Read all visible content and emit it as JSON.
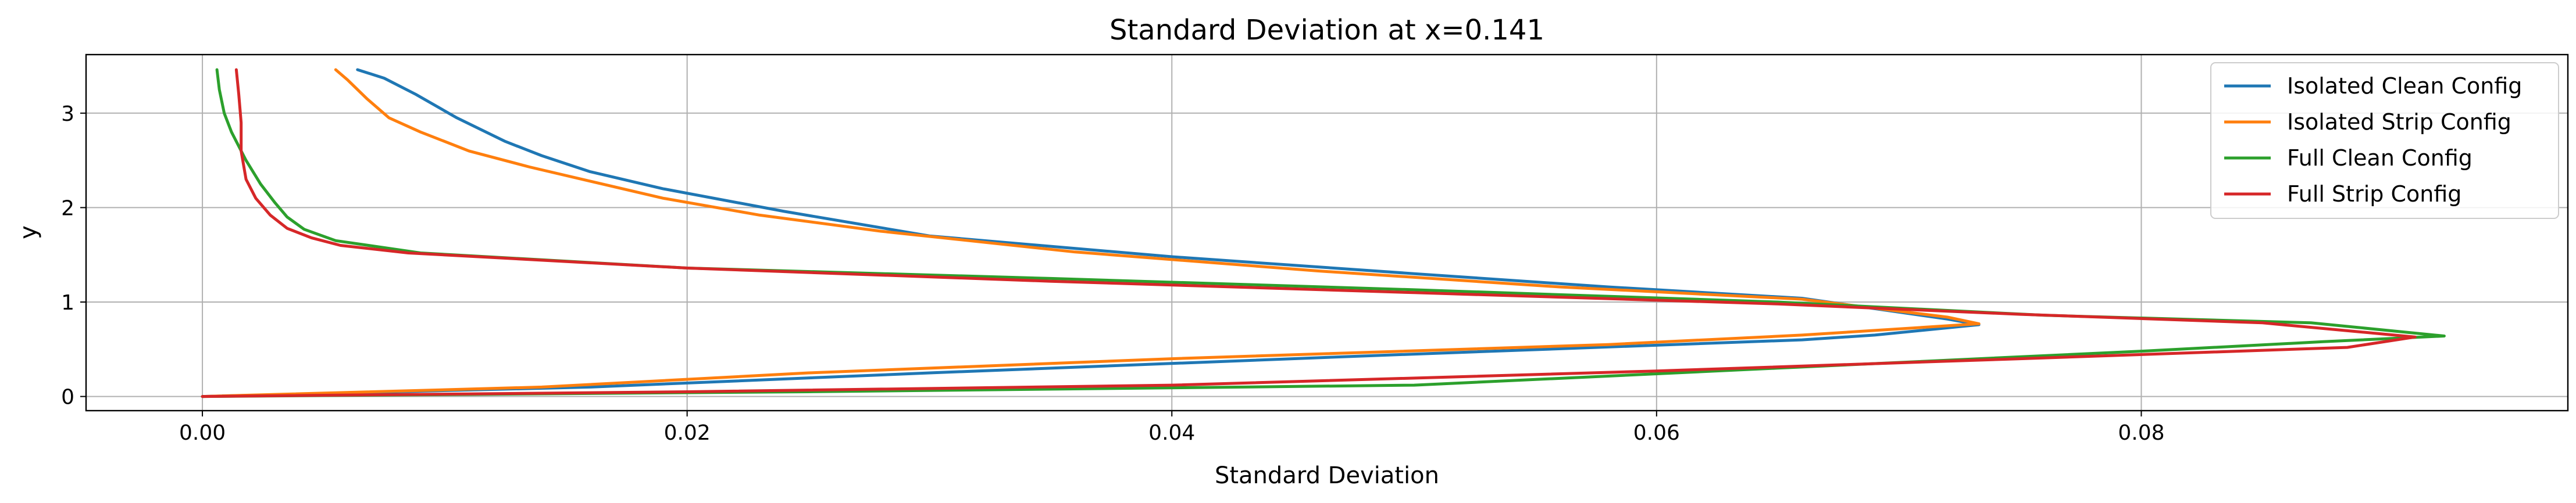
{
  "chart_data": {
    "type": "line",
    "title": "Standard Deviation at x=0.141",
    "xlabel": "Standard Deviation",
    "ylabel": "y",
    "xlim": [
      -0.0048,
      0.0976
    ],
    "ylim": [
      -0.15,
      3.62
    ],
    "xticks": [
      0.0,
      0.02,
      0.04,
      0.06,
      0.08
    ],
    "xtick_labels": [
      "0.00",
      "0.02",
      "0.04",
      "0.06",
      "0.08"
    ],
    "yticks": [
      0,
      1,
      2,
      3
    ],
    "ytick_labels": [
      "0",
      "1",
      "2",
      "3"
    ],
    "grid": true,
    "legend_position": "top-right",
    "series": [
      {
        "name": "Isolated Clean Config",
        "color": "#1f77b4",
        "points": [
          [
            0.0,
            0.0
          ],
          [
            0.016,
            0.1
          ],
          [
            0.03,
            0.25
          ],
          [
            0.048,
            0.43
          ],
          [
            0.066,
            0.6
          ],
          [
            0.069,
            0.65
          ],
          [
            0.0733,
            0.76
          ],
          [
            0.072,
            0.82
          ],
          [
            0.066,
            1.04
          ],
          [
            0.058,
            1.16
          ],
          [
            0.05,
            1.3
          ],
          [
            0.04,
            1.48
          ],
          [
            0.03,
            1.7
          ],
          [
            0.024,
            1.96
          ],
          [
            0.019,
            2.2
          ],
          [
            0.016,
            2.38
          ],
          [
            0.014,
            2.55
          ],
          [
            0.0125,
            2.7
          ],
          [
            0.0105,
            2.95
          ],
          [
            0.0088,
            3.2
          ],
          [
            0.0075,
            3.37
          ],
          [
            0.0064,
            3.46
          ]
        ]
      },
      {
        "name": "Isolated Strip Config",
        "color": "#ff7f0e",
        "points": [
          [
            0.0,
            0.0
          ],
          [
            0.014,
            0.1
          ],
          [
            0.025,
            0.25
          ],
          [
            0.04,
            0.4
          ],
          [
            0.058,
            0.55
          ],
          [
            0.066,
            0.65
          ],
          [
            0.0733,
            0.77
          ],
          [
            0.072,
            0.84
          ],
          [
            0.066,
            1.03
          ],
          [
            0.056,
            1.16
          ],
          [
            0.046,
            1.33
          ],
          [
            0.036,
            1.53
          ],
          [
            0.028,
            1.75
          ],
          [
            0.023,
            1.92
          ],
          [
            0.019,
            2.1
          ],
          [
            0.0165,
            2.25
          ],
          [
            0.0135,
            2.43
          ],
          [
            0.011,
            2.6
          ],
          [
            0.009,
            2.8
          ],
          [
            0.0077,
            2.95
          ],
          [
            0.0068,
            3.15
          ],
          [
            0.006,
            3.35
          ],
          [
            0.0055,
            3.46
          ]
        ]
      },
      {
        "name": "Full Clean Config",
        "color": "#2ca02c",
        "points": [
          [
            0.0,
            0.0
          ],
          [
            0.025,
            0.05
          ],
          [
            0.05,
            0.12
          ],
          [
            0.065,
            0.3
          ],
          [
            0.08,
            0.48
          ],
          [
            0.0875,
            0.58
          ],
          [
            0.0925,
            0.64
          ],
          [
            0.087,
            0.78
          ],
          [
            0.076,
            0.86
          ],
          [
            0.065,
            1.0
          ],
          [
            0.05,
            1.13
          ],
          [
            0.035,
            1.25
          ],
          [
            0.02,
            1.36
          ],
          [
            0.009,
            1.52
          ],
          [
            0.0055,
            1.65
          ],
          [
            0.0042,
            1.77
          ],
          [
            0.0035,
            1.9
          ],
          [
            0.003,
            2.05
          ],
          [
            0.0024,
            2.25
          ],
          [
            0.0018,
            2.5
          ],
          [
            0.0012,
            2.8
          ],
          [
            0.0009,
            3.0
          ],
          [
            0.0007,
            3.25
          ],
          [
            0.0006,
            3.46
          ]
        ]
      },
      {
        "name": "Full Strip Config",
        "color": "#d62728",
        "points": [
          [
            0.0,
            0.0
          ],
          [
            0.02,
            0.05
          ],
          [
            0.04,
            0.12
          ],
          [
            0.06,
            0.27
          ],
          [
            0.075,
            0.4
          ],
          [
            0.0885,
            0.52
          ],
          [
            0.0913,
            0.63
          ],
          [
            0.085,
            0.78
          ],
          [
            0.075,
            0.87
          ],
          [
            0.065,
            0.98
          ],
          [
            0.05,
            1.1
          ],
          [
            0.035,
            1.22
          ],
          [
            0.02,
            1.36
          ],
          [
            0.0085,
            1.52
          ],
          [
            0.0057,
            1.6
          ],
          [
            0.0045,
            1.68
          ],
          [
            0.0035,
            1.78
          ],
          [
            0.0028,
            1.92
          ],
          [
            0.0022,
            2.1
          ],
          [
            0.0018,
            2.3
          ],
          [
            0.0016,
            2.6
          ],
          [
            0.0016,
            2.9
          ],
          [
            0.0015,
            3.2
          ],
          [
            0.0014,
            3.46
          ]
        ]
      }
    ]
  }
}
